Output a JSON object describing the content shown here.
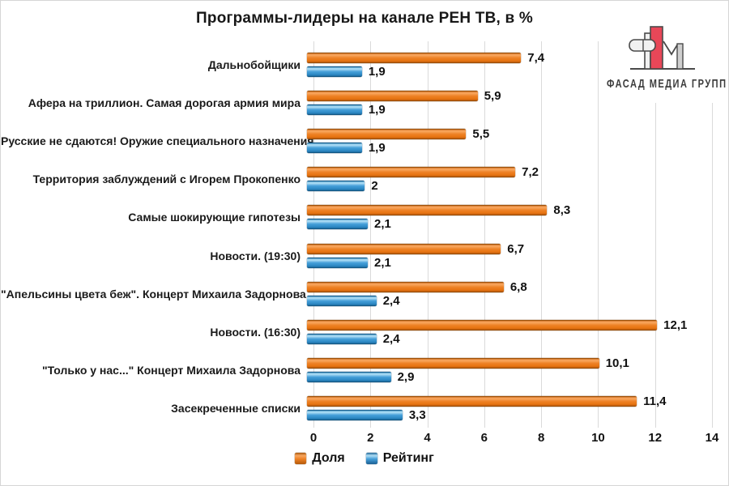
{
  "title": "Программы-лидеры на канале РЕН ТВ, в %",
  "logo": {
    "text": "ФАСАД МЕДИА ГРУПП"
  },
  "colors": {
    "share": "#ED7D31",
    "rating": "#41A0DC",
    "gridline": "#DADADA",
    "logo_red": "#E84758",
    "logo_gray": "#CFCFCF",
    "logo_outline": "#4A4A4A"
  },
  "chart_data": {
    "type": "bar",
    "orientation": "horizontal",
    "title": "Программы-лидеры на канале РЕН ТВ, в %",
    "categories": [
      "Дальнобойщики",
      "Афера на триллион. Самая дорогая армия мира",
      "Русские не сдаются! Оружие специального назначения",
      "Территория заблуждений с Игорем Прокопенко",
      "Самые шокирующие гипотезы",
      "Новости. (19:30)",
      "\"Апельсины цвета беж\". Концерт Михаила Задорнова",
      "Новости. (16:30)",
      "\"Только у нас...\" Концерт Михаила Задорнова",
      "Засекреченные списки"
    ],
    "series": [
      {
        "name": "Доля",
        "color": "#ED7D31",
        "values": [
          7.4,
          5.9,
          5.5,
          7.2,
          8.3,
          6.7,
          6.8,
          12.1,
          10.1,
          11.4
        ],
        "labels": [
          "7,4",
          "5,9",
          "5,5",
          "7,2",
          "8,3",
          "6,7",
          "6,8",
          "12,1",
          "10,1",
          "11,4"
        ]
      },
      {
        "name": "Рейтинг",
        "color": "#41A0DC",
        "values": [
          1.9,
          1.9,
          1.9,
          2,
          2.1,
          2.1,
          2.4,
          2.4,
          2.9,
          3.3
        ],
        "labels": [
          "1,9",
          "1,9",
          "1,9",
          "2",
          "2,1",
          "2,1",
          "2,4",
          "2,4",
          "2,9",
          "3,3"
        ]
      }
    ],
    "xlim": [
      0,
      14
    ],
    "xticks": [
      0,
      2,
      4,
      6,
      8,
      10,
      12,
      14
    ],
    "grid": "vertical-major",
    "legend_position": "bottom",
    "value_labels": "outside-end"
  }
}
